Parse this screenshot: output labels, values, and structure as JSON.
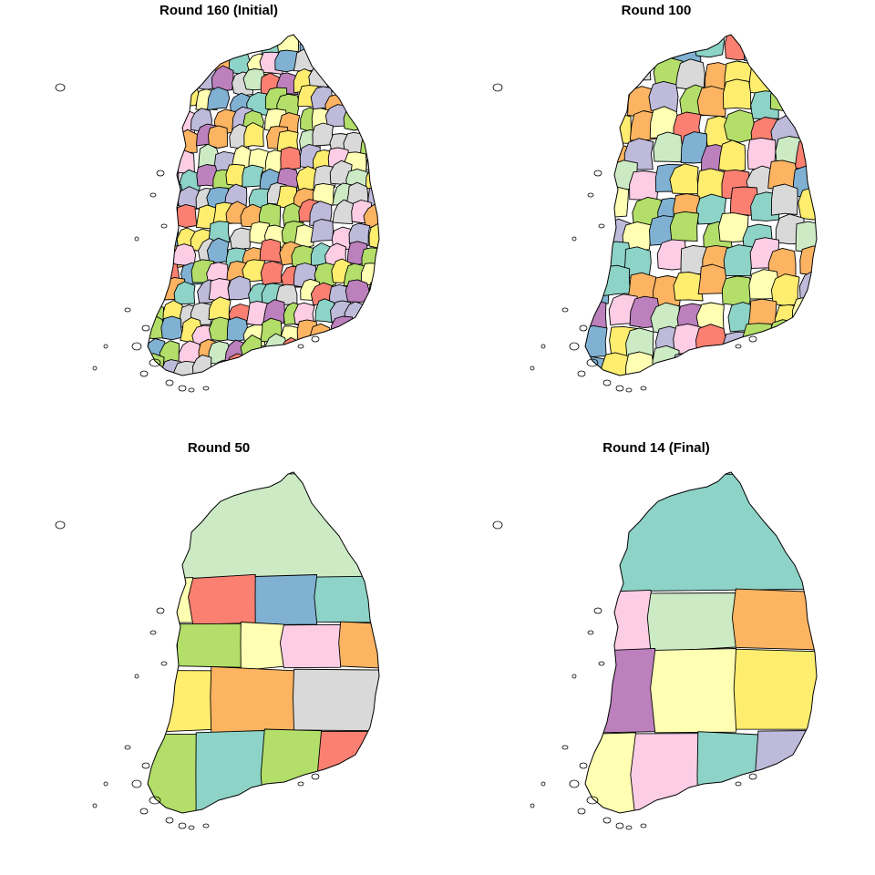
{
  "panels": [
    {
      "title": "Round 160 (Initial)",
      "mode": "grid",
      "cols": 14,
      "rows": 18,
      "seed": 3
    },
    {
      "title": "Round 100",
      "mode": "grid",
      "cols": 10,
      "rows": 13,
      "seed": 11
    },
    {
      "title": "Round 50",
      "mode": "regions",
      "seed": 29
    },
    {
      "title": "Round 14 (Final)",
      "mode": "regions",
      "seed": 41
    }
  ],
  "palette": [
    "#8DD3C7",
    "#FFFFB3",
    "#BEBADA",
    "#FB8072",
    "#80B1D3",
    "#FDB462",
    "#B3DE69",
    "#FCCDE5",
    "#D9D9D9",
    "#BC80BD",
    "#CCEBC5",
    "#FFED6F"
  ]
}
